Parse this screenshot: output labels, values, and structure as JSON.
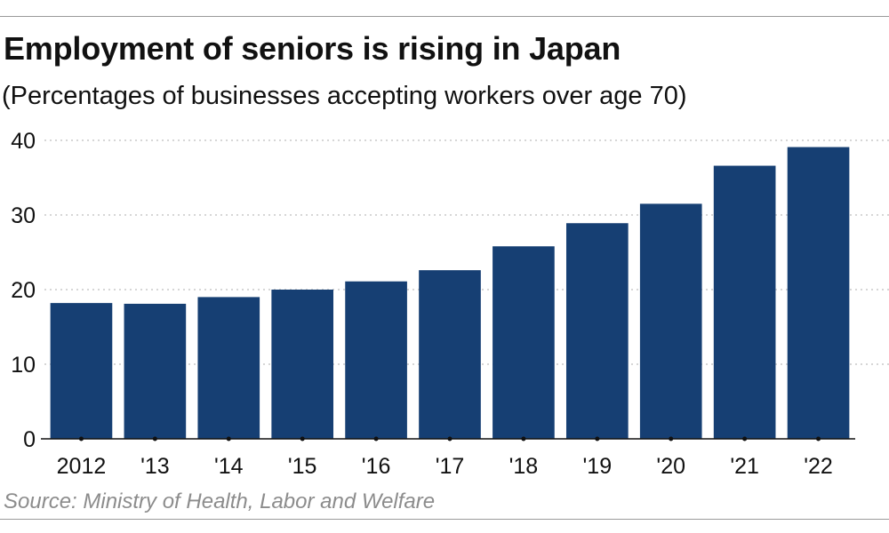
{
  "header": {
    "title": "Employment of seniors is rising in Japan",
    "subtitle": "(Percentages of businesses accepting workers over age 70)"
  },
  "footer": {
    "source": "Source: Ministry of Health, Labor and Welfare"
  },
  "colors": {
    "bar": "#163f73",
    "grid": "#c8c8c8",
    "axis": "#111111"
  },
  "chart_data": {
    "type": "bar",
    "title": "Employment of seniors is rising in Japan",
    "subtitle": "(Percentages of businesses accepting workers over age 70)",
    "xlabel": "",
    "ylabel": "",
    "categories": [
      "2012",
      "'13",
      "'14",
      "'15",
      "'16",
      "'17",
      "'18",
      "'19",
      "'20",
      "'21",
      "'22"
    ],
    "values": [
      18.2,
      18.1,
      19.0,
      20.0,
      21.1,
      22.6,
      25.8,
      28.9,
      31.5,
      36.6,
      39.1
    ],
    "ylim": [
      0,
      40
    ],
    "yticks": [
      0,
      10,
      20,
      30,
      40
    ],
    "grid": "horizontal dotted",
    "legend": "none"
  }
}
